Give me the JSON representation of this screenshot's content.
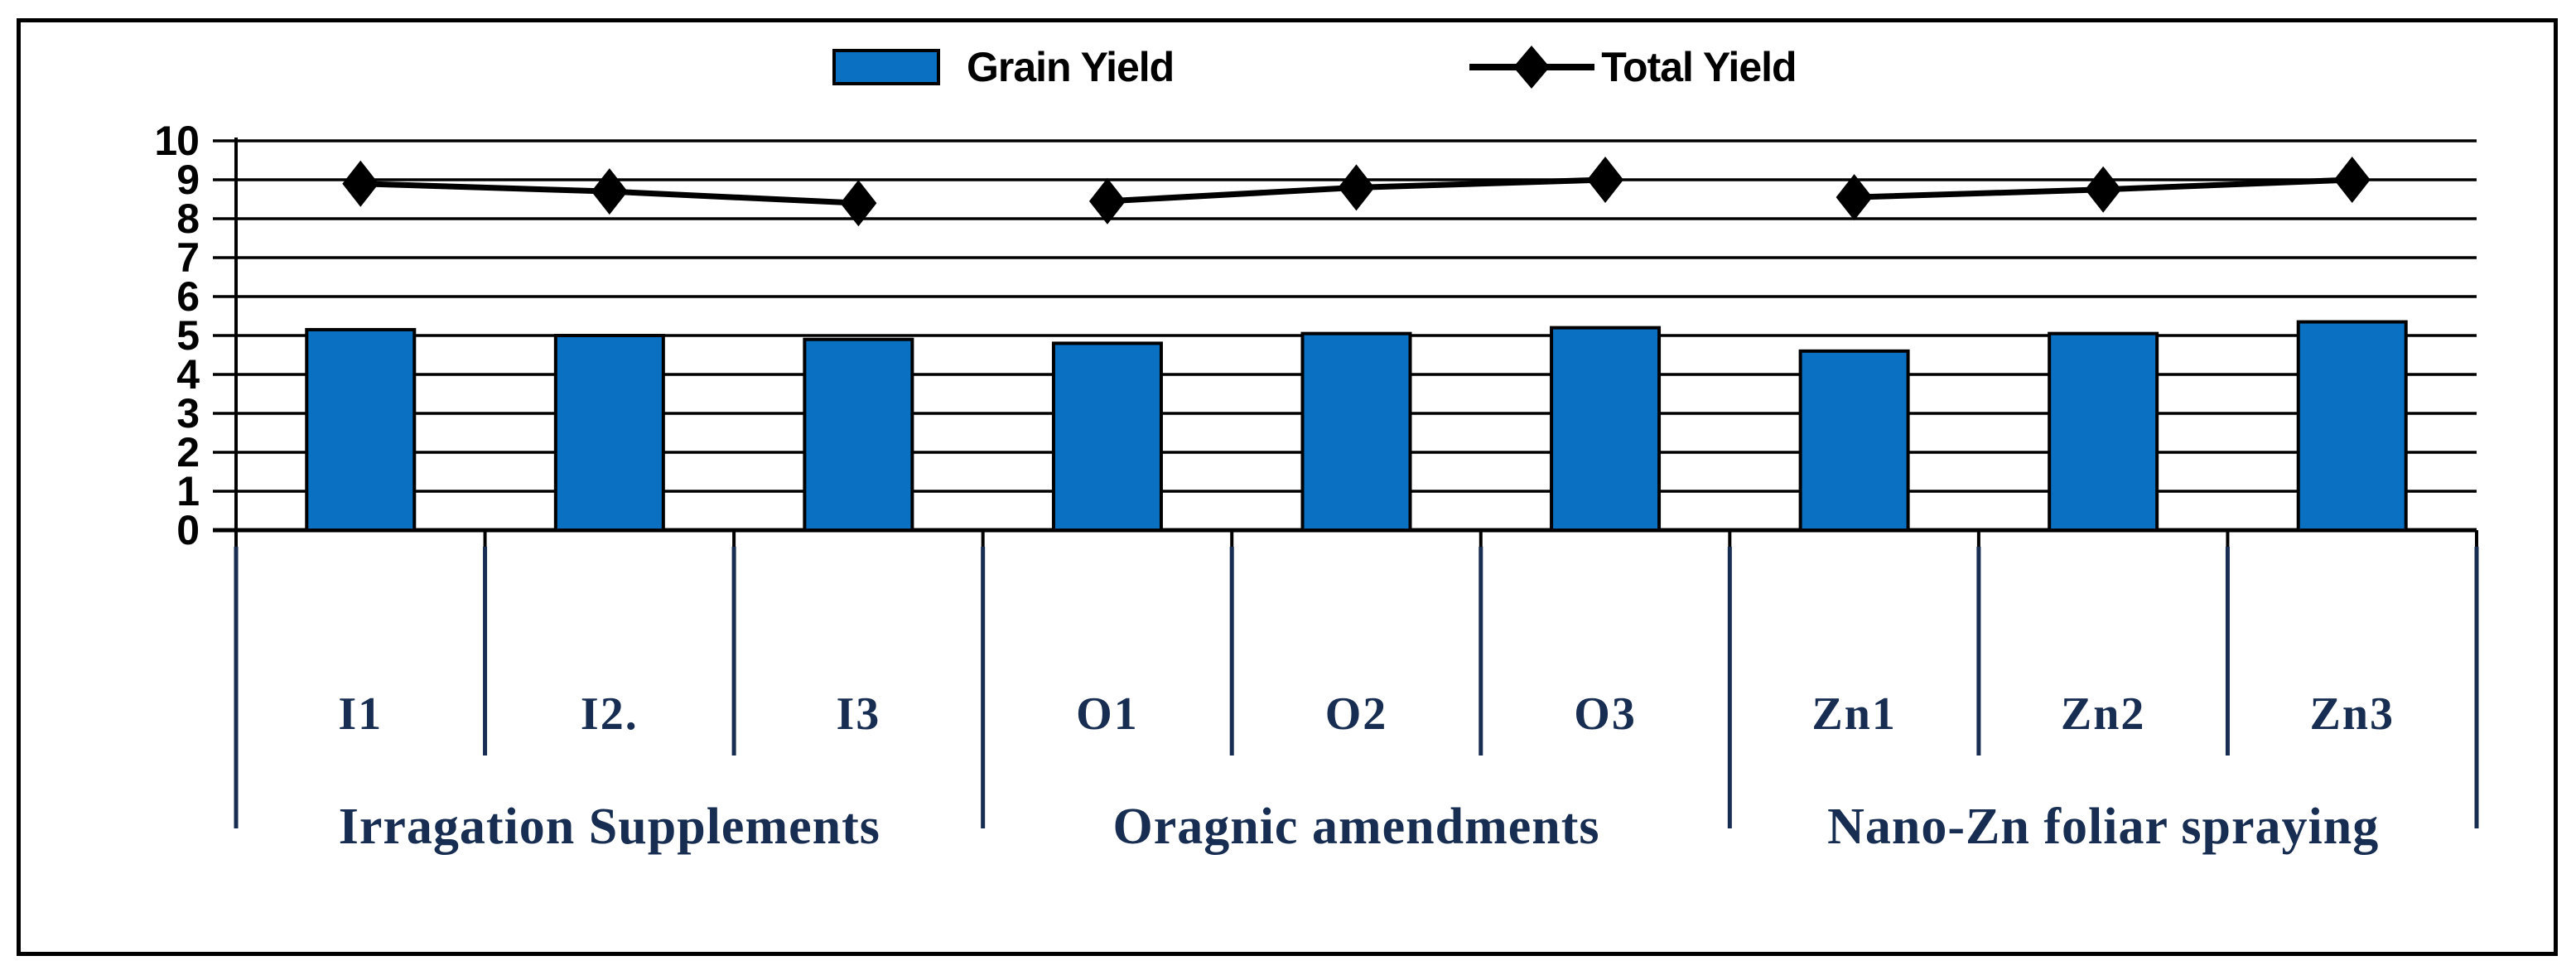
{
  "figure": {
    "background": "#ffffff",
    "border_color": "#000000"
  },
  "chart_data": {
    "type": "bar",
    "title": "",
    "xlabel": "",
    "ylabel": "",
    "ylim": [
      0,
      10
    ],
    "yticks": [
      0,
      1,
      2,
      3,
      4,
      5,
      6,
      7,
      8,
      9,
      10
    ],
    "grid": true,
    "legend_position": "top",
    "categories": [
      "I1",
      "I2.",
      "I3",
      "O1",
      "O2",
      "O3",
      "Zn1",
      "Zn2",
      "Zn3"
    ],
    "groups": [
      {
        "label": "Irragation Supplements",
        "span": [
          0,
          2
        ]
      },
      {
        "label": "Oragnic amendments",
        "span": [
          3,
          5
        ]
      },
      {
        "label": "Nano-Zn foliar spraying",
        "span": [
          6,
          8
        ]
      }
    ],
    "series": [
      {
        "name": "Grain Yield",
        "type": "bar",
        "color": "#0a70c2",
        "values": [
          5.15,
          5.0,
          4.9,
          4.8,
          5.05,
          5.2,
          4.6,
          5.05,
          5.35
        ]
      },
      {
        "name": "Total Yield",
        "type": "line",
        "color": "#000000",
        "marker": "diamond",
        "line_broken_between_groups": true,
        "values": [
          8.9,
          8.7,
          8.4,
          8.45,
          8.8,
          9.0,
          8.55,
          8.75,
          9.0
        ]
      }
    ],
    "colors": {
      "bar_fill": "#0a70c2",
      "bar_border": "#000000",
      "line": "#000000",
      "axis": "#000000",
      "axis_label_text": "#000000",
      "category_text": "#172d52",
      "separator_line": "#172d52"
    }
  }
}
